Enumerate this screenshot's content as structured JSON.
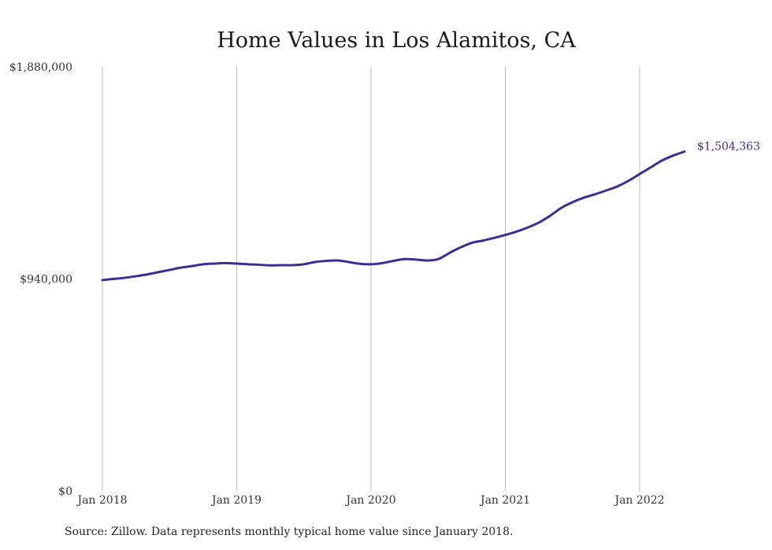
{
  "chart_data": {
    "type": "line",
    "title": "Home Values in Los Alamitos, CA",
    "xlabel": "",
    "ylabel": "",
    "ylim": [
      0,
      1880000
    ],
    "yticks": [
      0,
      940000,
      1880000
    ],
    "ytick_labels": [
      "$0",
      "$940,000",
      "$1,880,000"
    ],
    "xticks": [
      "Jan 2018",
      "Jan 2019",
      "Jan 2020",
      "Jan 2021",
      "Jan 2022"
    ],
    "x_start": "2018-01",
    "grid": "vertical",
    "legend": "none",
    "line_color": "#3a2f95",
    "series": [
      {
        "values": [
          935000,
          940000,
          945000,
          952000,
          960000,
          970000,
          980000,
          990000,
          997000,
          1005000,
          1008000,
          1010000,
          1008000,
          1005000,
          1003000,
          1000000,
          1001000,
          1001000,
          1005000,
          1015000,
          1020000,
          1022000,
          1015000,
          1007000,
          1005000,
          1010000,
          1020000,
          1028000,
          1026000,
          1022000,
          1028000,
          1055000,
          1080000,
          1100000,
          1110000,
          1122000,
          1135000,
          1150000,
          1168000,
          1190000,
          1220000,
          1255000,
          1280000,
          1300000,
          1315000,
          1332000,
          1350000,
          1375000,
          1405000,
          1435000,
          1465000,
          1487000,
          1504363
        ]
      }
    ],
    "end_label": "$1,504,363"
  },
  "source_note": "Source: Zillow. Data represents monthly typical home value since January 2018."
}
